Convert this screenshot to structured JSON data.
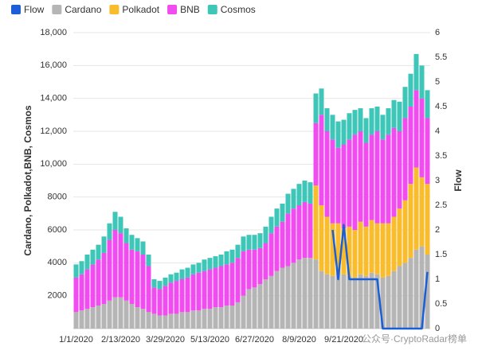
{
  "chart_data": {
    "type": "bar",
    "stacked": true,
    "y_label": "Cardano, Polkadot,BNB, Cosmos",
    "y2_label": "Flow",
    "watermark": "公众号·CryptoRadar榜单",
    "categories": [
      "1/1/2020",
      null,
      null,
      null,
      null,
      null,
      null,
      null,
      "2/13/2020",
      null,
      null,
      null,
      null,
      null,
      null,
      null,
      "3/29/2020",
      null,
      null,
      null,
      null,
      null,
      null,
      null,
      "5/13/2020",
      null,
      null,
      null,
      null,
      null,
      null,
      null,
      "6/27/2020",
      null,
      null,
      null,
      null,
      null,
      null,
      null,
      "8/9/2020",
      null,
      null,
      null,
      null,
      null,
      null,
      null,
      "9/21/2020",
      null,
      null,
      null,
      null,
      null,
      null,
      null,
      null,
      null,
      null,
      null,
      null,
      null,
      null,
      null
    ],
    "series": [
      {
        "name": "Flow",
        "color": "#1a5fd6",
        "type": "line",
        "axis": "y2",
        "values": [
          null,
          null,
          null,
          null,
          null,
          null,
          null,
          null,
          null,
          null,
          null,
          null,
          null,
          null,
          null,
          null,
          null,
          null,
          null,
          null,
          null,
          null,
          null,
          null,
          null,
          null,
          null,
          null,
          null,
          null,
          null,
          null,
          null,
          null,
          null,
          null,
          null,
          null,
          null,
          null,
          null,
          null,
          null,
          null,
          null,
          null,
          2,
          1,
          2.1,
          1,
          1,
          1,
          1,
          1,
          1,
          0,
          0,
          0,
          0,
          0,
          0,
          0,
          0,
          1.15
        ]
      },
      {
        "name": "Cardano",
        "color": "#b5b5b5",
        "values": [
          1000,
          1100,
          1200,
          1300,
          1400,
          1500,
          1700,
          1900,
          1900,
          1700,
          1500,
          1300,
          1200,
          1000,
          900,
          800,
          800,
          900,
          900,
          1000,
          1000,
          1100,
          1100,
          1200,
          1200,
          1300,
          1300,
          1400,
          1400,
          1600,
          2000,
          2400,
          2500,
          2700,
          3000,
          3200,
          3500,
          3700,
          3800,
          4000,
          4200,
          4300,
          4300,
          4200,
          3500,
          3300,
          3200,
          3400,
          3300,
          3200,
          3100,
          3300,
          3200,
          3400,
          3300,
          3100,
          3200,
          3500,
          3800,
          4000,
          4300,
          4800,
          5000,
          4500
        ]
      },
      {
        "name": "Polkadot",
        "color": "#f9bc2c",
        "values": [
          null,
          null,
          null,
          null,
          null,
          null,
          null,
          null,
          null,
          null,
          null,
          null,
          null,
          null,
          null,
          null,
          null,
          null,
          null,
          null,
          null,
          null,
          null,
          null,
          null,
          null,
          null,
          null,
          null,
          null,
          null,
          null,
          null,
          null,
          null,
          null,
          null,
          null,
          null,
          null,
          null,
          null,
          null,
          4500,
          4000,
          3500,
          3200,
          3000,
          2800,
          3000,
          2900,
          3200,
          3000,
          3200,
          3100,
          3300,
          3200,
          3300,
          3500,
          3800,
          4500,
          5000,
          4200,
          4300
        ]
      },
      {
        "name": "BNB",
        "color": "#f04cf0",
        "values": [
          2100,
          2200,
          2400,
          2600,
          2800,
          3100,
          3700,
          4100,
          3900,
          3500,
          3300,
          3400,
          3300,
          2800,
          1600,
          1600,
          1800,
          1900,
          2000,
          2000,
          2100,
          2200,
          2300,
          2300,
          2400,
          2400,
          2500,
          2500,
          2600,
          2700,
          2700,
          2400,
          2300,
          2200,
          2200,
          2600,
          2700,
          2800,
          3200,
          3300,
          3300,
          3400,
          3300,
          3800,
          5500,
          5200,
          5100,
          4600,
          5100,
          5300,
          5800,
          5500,
          5100,
          5200,
          5600,
          5100,
          5400,
          5400,
          4700,
          5000,
          4700,
          4700,
          4800,
          4000
        ]
      },
      {
        "name": "Cosmos",
        "color": "#3ec6b8",
        "values": [
          800,
          800,
          900,
          900,
          900,
          1000,
          1000,
          1100,
          1000,
          900,
          900,
          800,
          800,
          700,
          500,
          500,
          500,
          500,
          500,
          600,
          600,
          600,
          600,
          700,
          700,
          700,
          700,
          800,
          800,
          800,
          900,
          900,
          900,
          900,
          1000,
          1000,
          1100,
          1100,
          1200,
          1200,
          1300,
          1300,
          1300,
          1800,
          1600,
          1400,
          1500,
          1600,
          1500,
          1600,
          1500,
          1400,
          1500,
          1600,
          1500,
          1500,
          1600,
          1700,
          1800,
          1900,
          2000,
          2200,
          2000,
          1700
        ]
      }
    ],
    "ylim": [
      0,
      18000
    ],
    "yticks": [
      2000,
      4000,
      6000,
      8000,
      {
        "value": 10000,
        "label": "10,000"
      },
      {
        "value": 12000,
        "label": "12,000"
      },
      {
        "value": 14000,
        "label": "14,000"
      },
      {
        "value": 16000,
        "label": "16,000"
      },
      {
        "value": 18000,
        "label": "18,000"
      }
    ],
    "y2lim": [
      0,
      6
    ],
    "y2ticks": [
      0,
      0.5,
      1,
      1.5,
      2,
      2.5,
      3,
      3.5,
      4,
      4.5,
      5,
      5.5,
      6
    ],
    "grid": true
  }
}
